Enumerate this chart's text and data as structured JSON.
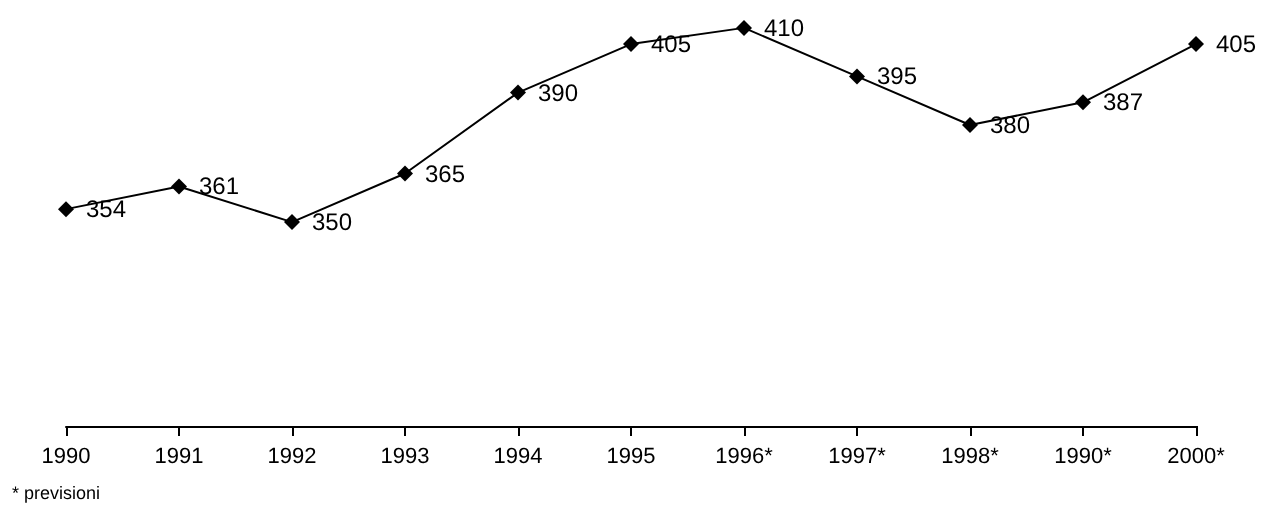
{
  "chart_data": {
    "type": "line",
    "categories": [
      "1990",
      "1991",
      "1992",
      "1993",
      "1994",
      "1995",
      "1996*",
      "1997*",
      "1998*",
      "1990*",
      "2000*"
    ],
    "values": [
      354,
      361,
      350,
      365,
      390,
      405,
      410,
      395,
      380,
      387,
      405
    ],
    "color": "#000000",
    "marker": "diamond",
    "line_style": "solid",
    "data_labels": true,
    "grid": false,
    "annotations": [
      "* previsioni"
    ]
  }
}
